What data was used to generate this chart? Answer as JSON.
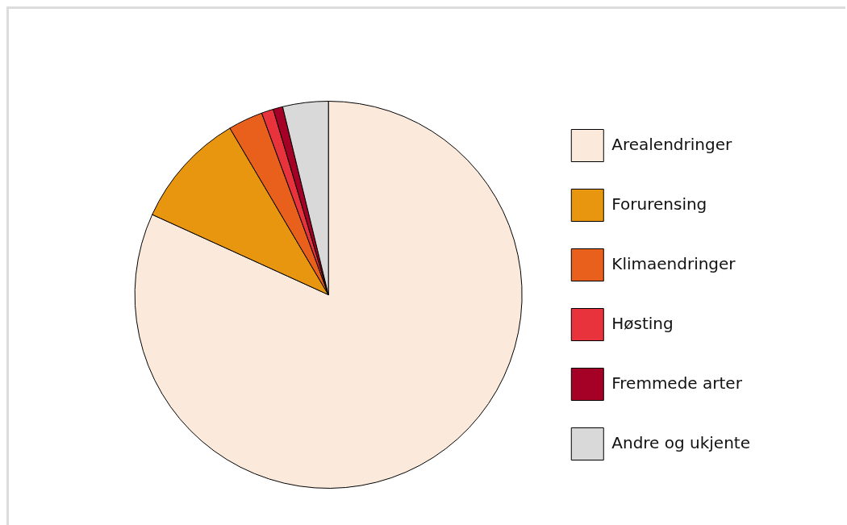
{
  "chart_data": {
    "type": "pie",
    "categories": [
      "Arealendringer",
      "Forurensing",
      "Klimaendringer",
      "Høsting",
      "Fremmede arter",
      "Andre og ukjente"
    ],
    "values": [
      81.8,
      9.7,
      2.9,
      1.0,
      0.8,
      3.8
    ],
    "colors": [
      "#fbeadb",
      "#e8960f",
      "#e8601c",
      "#e8323c",
      "#a50026",
      "#d9d9d9"
    ],
    "legend": "right"
  }
}
